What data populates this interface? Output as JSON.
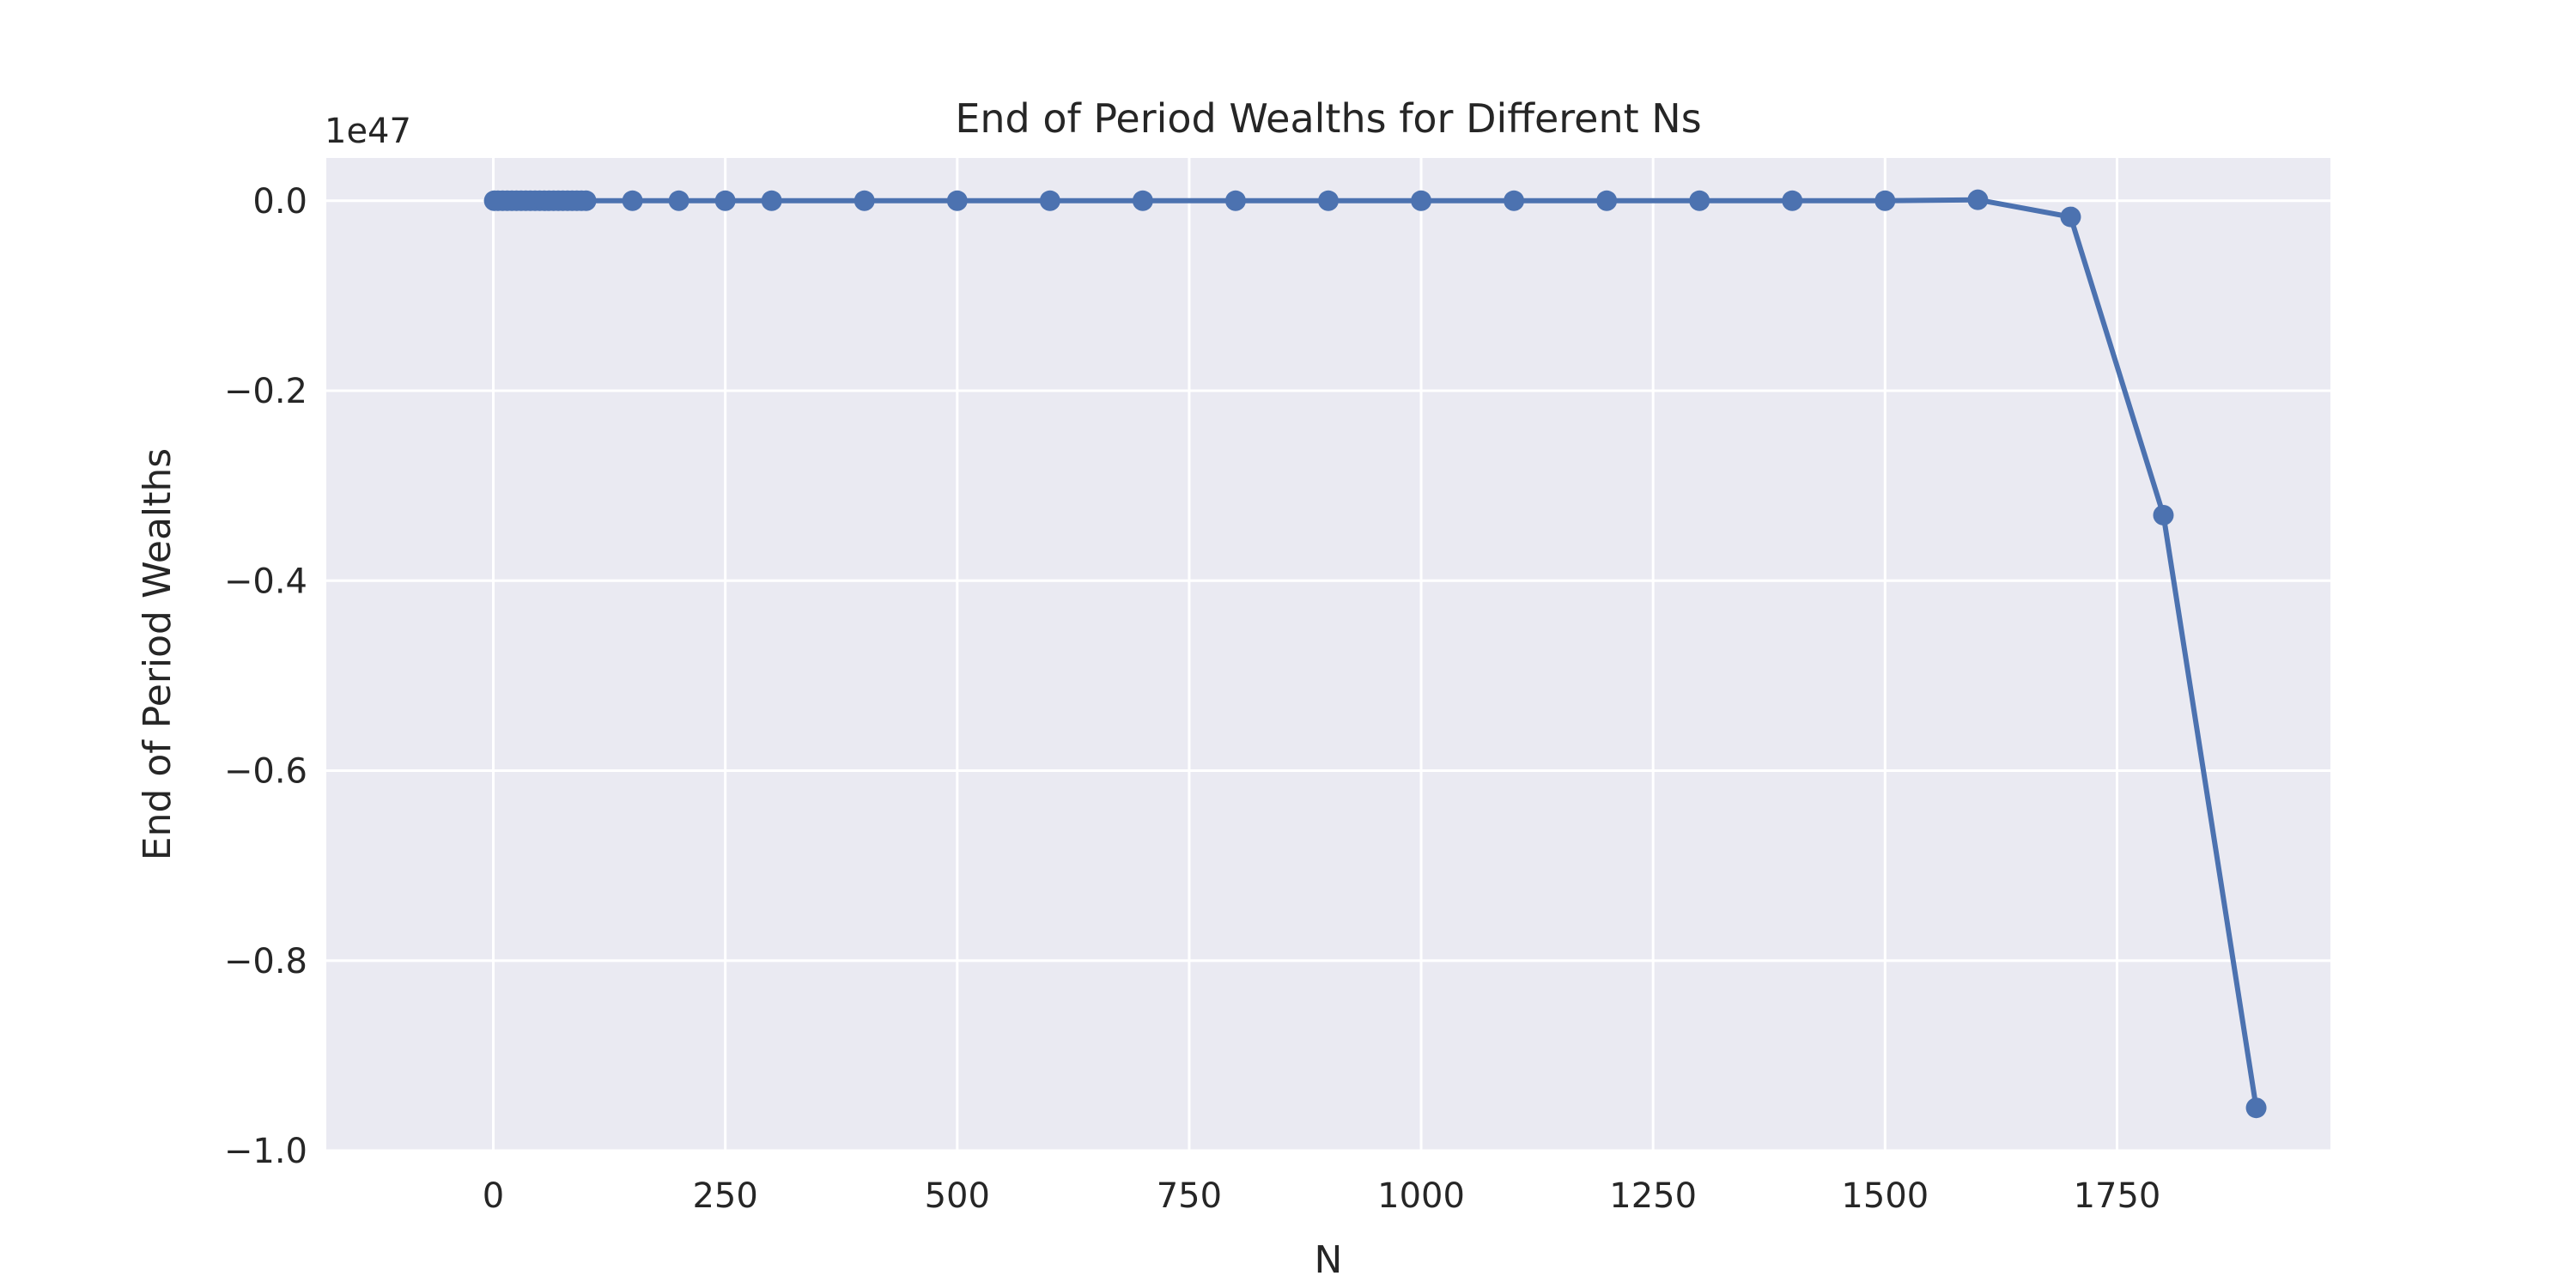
{
  "chart_data": {
    "type": "line",
    "title": "End of Period Wealths for Different Ns",
    "xlabel": "N",
    "ylabel": "End of Period Wealths",
    "y_offset_label": "1e47",
    "xlim": [
      -180,
      1980
    ],
    "ylim": [
      -1.0,
      0.045
    ],
    "grid": true,
    "legend": "none",
    "x_ticks": [
      0,
      250,
      500,
      750,
      1000,
      1250,
      1500,
      1750
    ],
    "x_tick_labels": [
      "0",
      "250",
      "500",
      "750",
      "1000",
      "1250",
      "1500",
      "1750"
    ],
    "y_ticks": [
      0.0,
      -0.2,
      -0.4,
      -0.6,
      -0.8,
      -1.0
    ],
    "y_tick_labels": [
      "0.0",
      "−0.2",
      "−0.4",
      "−0.6",
      "−0.8",
      "−1.0"
    ],
    "series": [
      {
        "color": "#4c72b0",
        "x": [
          1,
          5,
          10,
          15,
          20,
          25,
          30,
          35,
          40,
          45,
          50,
          55,
          60,
          65,
          70,
          75,
          80,
          85,
          90,
          95,
          100,
          150,
          200,
          250,
          300,
          400,
          500,
          600,
          700,
          800,
          900,
          1000,
          1100,
          1200,
          1300,
          1400,
          1500,
          1600,
          1700,
          1800,
          1900
        ],
        "values": [
          0,
          0,
          0,
          0,
          0,
          0,
          0,
          0,
          0,
          0,
          0,
          0,
          0,
          0,
          0,
          0,
          0,
          0,
          0,
          0,
          0,
          0,
          0,
          0,
          0,
          0,
          0,
          0,
          0,
          0,
          0,
          0,
          0,
          0,
          0,
          0,
          0,
          0.001,
          -0.017,
          -0.331,
          -0.955
        ]
      }
    ]
  }
}
